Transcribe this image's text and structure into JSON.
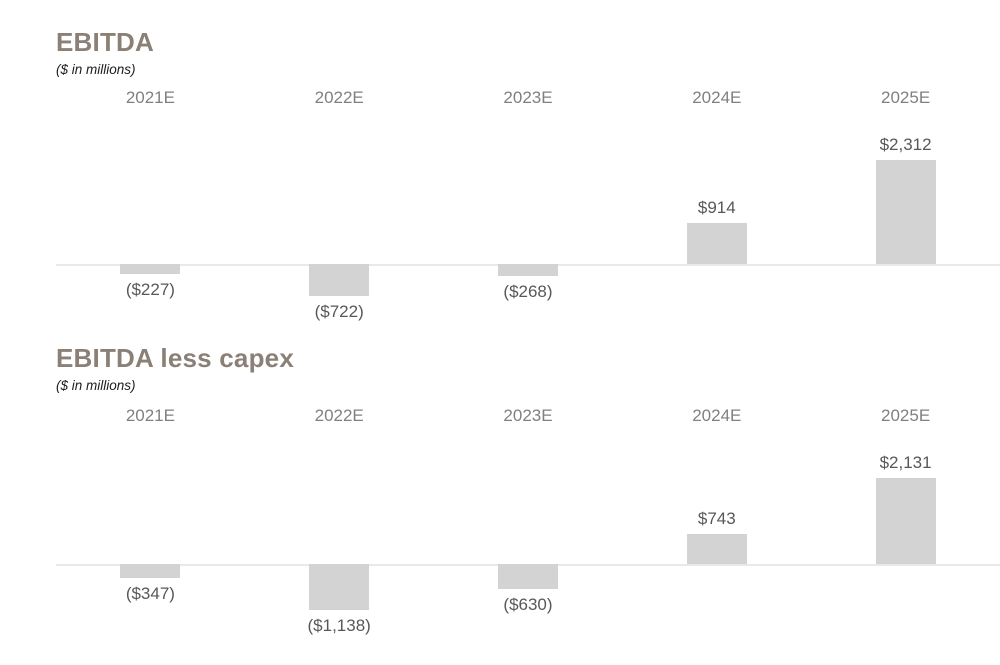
{
  "page": {
    "background": "#ffffff"
  },
  "colors": {
    "title": "#8b8076",
    "subtitle": "#1c1c1c",
    "year_label": "#7e8082",
    "value_label": "#58585a",
    "bar": "#d3d3d3",
    "axis_line": "#e9e9e9"
  },
  "chart_data": [
    {
      "type": "bar",
      "title": "EBITDA",
      "subtitle": "($ in millions)",
      "categories": [
        "2021E",
        "2022E",
        "2023E",
        "2024E",
        "2025E"
      ],
      "values": [
        -227,
        -722,
        -268,
        914,
        2312
      ],
      "value_labels": [
        "($227)",
        "($722)",
        "($268)",
        "$914",
        "$2,312"
      ],
      "xlabel": "",
      "ylabel": "",
      "ylim": [
        -800,
        2400
      ],
      "grid": false,
      "legend": "none",
      "baseline": 0
    },
    {
      "type": "bar",
      "title": "EBITDA less capex",
      "subtitle": "($ in millions)",
      "categories": [
        "2021E",
        "2022E",
        "2023E",
        "2024E",
        "2025E"
      ],
      "values": [
        -347,
        -1138,
        -630,
        743,
        2131
      ],
      "value_labels": [
        "($347)",
        "($1,138)",
        "($630)",
        "$743",
        "$2,131"
      ],
      "xlabel": "",
      "ylabel": "",
      "ylim": [
        -1300,
        2300
      ],
      "grid": false,
      "legend": "none",
      "baseline": 0
    }
  ]
}
